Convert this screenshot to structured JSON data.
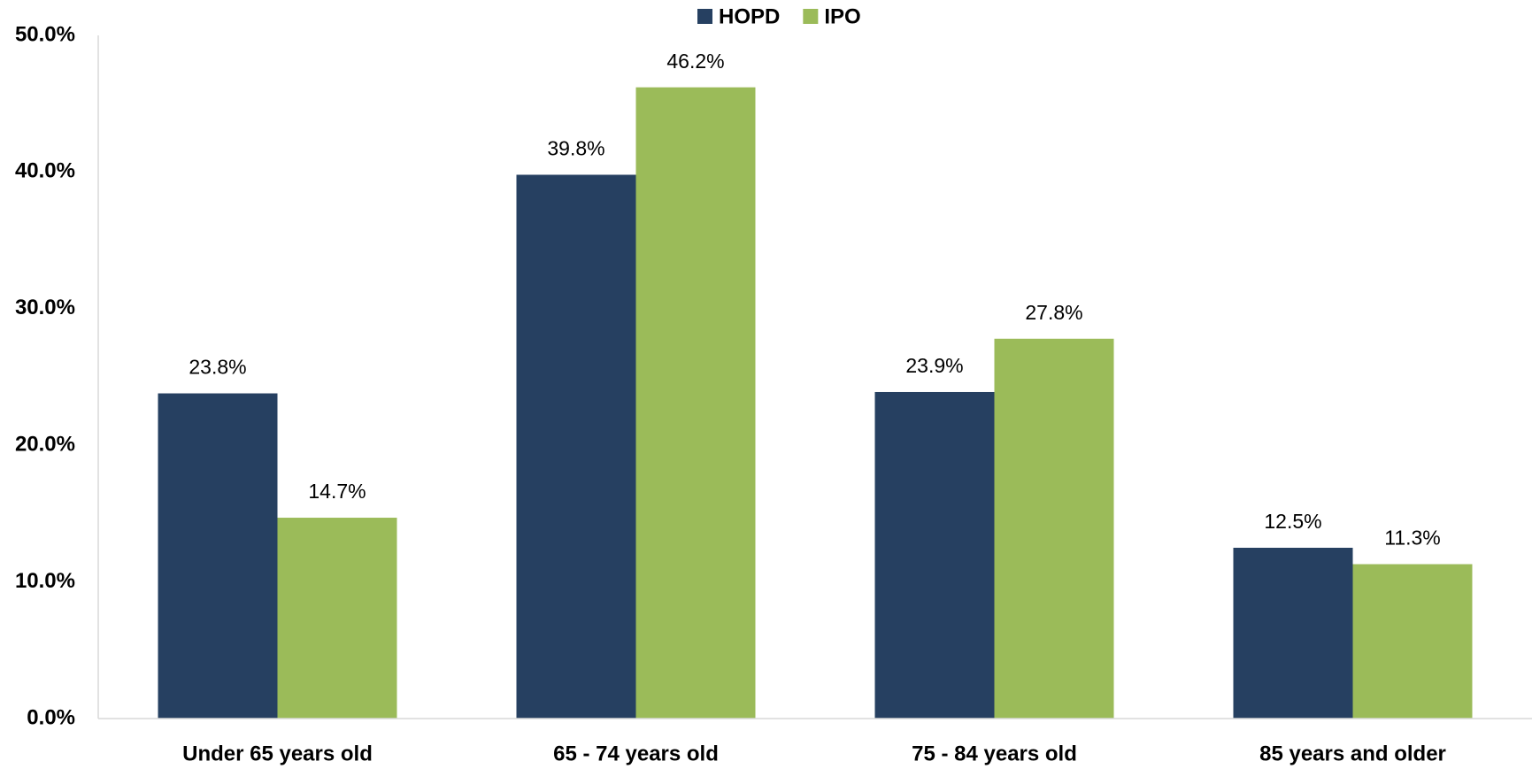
{
  "chart_data": {
    "type": "bar",
    "categories": [
      "Under 65 years old",
      "65 - 74 years old",
      "75 - 84 years old",
      "85 years and older"
    ],
    "series": [
      {
        "name": "HOPD",
        "color": "#264061",
        "values": [
          23.8,
          39.8,
          23.9,
          12.5
        ],
        "value_labels": [
          "23.8%",
          "39.8%",
          "23.9%",
          "12.5%"
        ]
      },
      {
        "name": "IPO",
        "color": "#9bbb59",
        "values": [
          14.7,
          46.2,
          27.8,
          11.3
        ],
        "value_labels": [
          "14.7%",
          "46.2%",
          "27.8%",
          "11.3%"
        ]
      }
    ],
    "ylim": [
      0,
      50
    ],
    "yticks": [
      {
        "value": 0,
        "label": "0.0%"
      },
      {
        "value": 10,
        "label": "10.0%"
      },
      {
        "value": 20,
        "label": "20.0%"
      },
      {
        "value": 30,
        "label": "30.0%"
      },
      {
        "value": 40,
        "label": "40.0%"
      },
      {
        "value": 50,
        "label": "50.0%"
      }
    ],
    "legend": "top",
    "grid": false
  }
}
